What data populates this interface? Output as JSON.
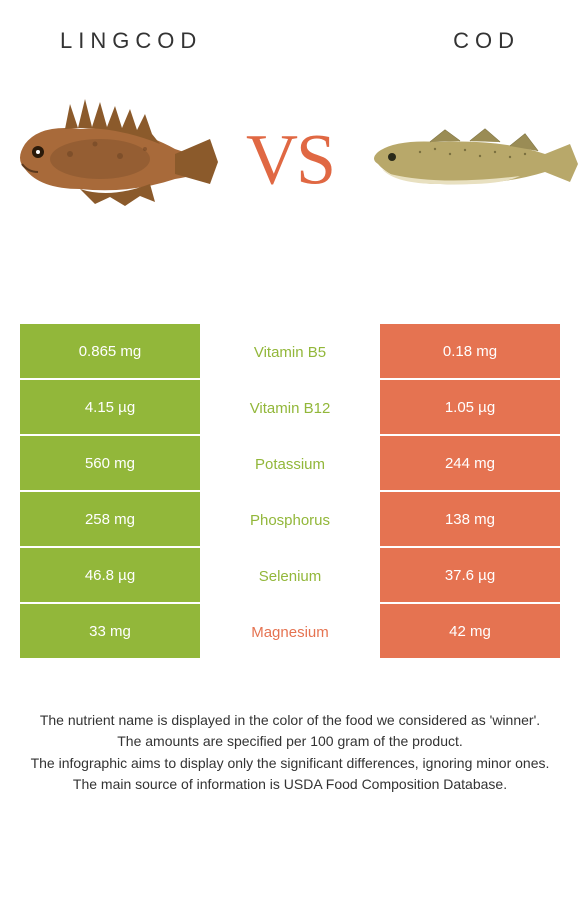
{
  "header": {
    "left_title": "LINGCOD",
    "right_title": "COD"
  },
  "vs_label": "VS",
  "colors": {
    "left_bg": "#92b73a",
    "right_bg": "#e57351",
    "vs_color": "#e06843",
    "text": "#333333"
  },
  "nutrients": [
    {
      "name": "Vitamin B5",
      "left": "0.865 mg",
      "right": "0.18 mg",
      "winner": "left"
    },
    {
      "name": "Vitamin B12",
      "left": "4.15 µg",
      "right": "1.05 µg",
      "winner": "left"
    },
    {
      "name": "Potassium",
      "left": "560 mg",
      "right": "244 mg",
      "winner": "left"
    },
    {
      "name": "Phosphorus",
      "left": "258 mg",
      "right": "138 mg",
      "winner": "left"
    },
    {
      "name": "Selenium",
      "left": "46.8 µg",
      "right": "37.6 µg",
      "winner": "left"
    },
    {
      "name": "Magnesium",
      "left": "33 mg",
      "right": "42 mg",
      "winner": "right"
    }
  ],
  "footnotes": [
    "The nutrient name is displayed in the color of the food we considered as 'winner'.",
    "The amounts are specified per 100 gram of the product.",
    "The infographic aims to display only the significant differences, ignoring minor ones.",
    "The main source of information is USDA Food Composition Database."
  ],
  "fish_left": {
    "body_color": "#a86a3a",
    "fin_color": "#8b5a2b",
    "dark": "#5c3a1e"
  },
  "fish_right": {
    "body_color": "#b8a86a",
    "belly_color": "#e8e0c0",
    "dark": "#7a7040"
  }
}
